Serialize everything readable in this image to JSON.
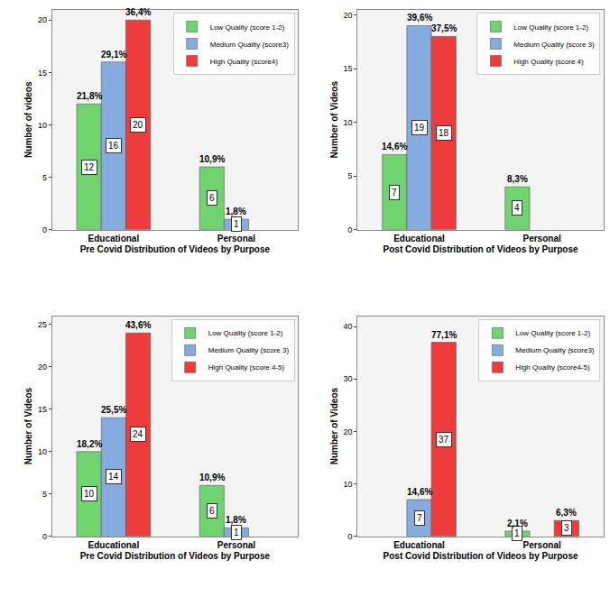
{
  "chart_data": [
    {
      "type": "bar",
      "x_label": "Pre Covid Distribution of Videos by Purpose",
      "y_label": "Number of videos",
      "categories": [
        "Educational",
        "Personal"
      ],
      "series": [
        {
          "name": "Low Quality (score 1-2)",
          "color": "#6fd46f",
          "values": [
            12,
            6
          ],
          "percent_labels": [
            "21,8%",
            "10,9%"
          ]
        },
        {
          "name": "Medium Quality (score3)",
          "color": "#86acdf",
          "values": [
            16,
            1
          ],
          "percent_labels": [
            "29,1%",
            "1,8%"
          ]
        },
        {
          "name": "High Quality (score4)",
          "color": "#ee3b3b",
          "values": [
            20,
            null
          ],
          "percent_labels": [
            "36,4%",
            null
          ]
        }
      ],
      "ylim": [
        0,
        21
      ],
      "yticks": [
        0,
        5,
        10,
        15,
        20
      ],
      "grid": false,
      "data_labels": true,
      "legend": "top right"
    },
    {
      "type": "bar",
      "x_label": "Post Covid Distribution of Videos by Purpose",
      "y_label": "Number of Videos",
      "categories": [
        "Educational",
        "Personal"
      ],
      "series": [
        {
          "name": "Low Quality (score 1-2)",
          "color": "#6fd46f",
          "values": [
            7,
            4
          ],
          "percent_labels": [
            "14,6%",
            "8,3%"
          ]
        },
        {
          "name": "Medium Quality (score 3)",
          "color": "#86acdf",
          "values": [
            19,
            null
          ],
          "percent_labels": [
            "39,6%",
            null
          ]
        },
        {
          "name": "High Quality (score 4)",
          "color": "#ee3b3b",
          "values": [
            18,
            null
          ],
          "percent_labels": [
            "37,5%",
            null
          ]
        }
      ],
      "ylim": [
        0,
        20.5
      ],
      "yticks": [
        0,
        5,
        10,
        15,
        20
      ],
      "grid": false,
      "data_labels": true,
      "legend": "top right"
    },
    {
      "type": "bar",
      "x_label": "Pre Covid Distribution of Videos by Purpose",
      "y_label": "Number of Videos",
      "categories": [
        "Educational",
        "Personal"
      ],
      "series": [
        {
          "name": "Low Quality (score 1-2)",
          "color": "#6fd46f",
          "values": [
            10,
            6
          ],
          "percent_labels": [
            "18,2%",
            "10,9%"
          ]
        },
        {
          "name": "Medium Quality (score 3)",
          "color": "#86acdf",
          "values": [
            14,
            1
          ],
          "percent_labels": [
            "25,5%",
            "1,8%"
          ]
        },
        {
          "name": "High Quality (score 4-5)",
          "color": "#ee3b3b",
          "values": [
            24,
            null
          ],
          "percent_labels": [
            "43,6%",
            null
          ]
        }
      ],
      "ylim": [
        0,
        26
      ],
      "yticks": [
        0,
        5,
        10,
        15,
        20,
        25
      ],
      "grid": false,
      "data_labels": true,
      "legend": "top right"
    },
    {
      "type": "bar",
      "x_label": "Post Covid Distribution of Videos by Purpose",
      "y_label": "Number of Videos",
      "categories": [
        "Educational",
        "Personal"
      ],
      "series": [
        {
          "name": "Low Quality (score 1-2)",
          "color": "#6fd46f",
          "values": [
            null,
            1
          ],
          "percent_labels": [
            null,
            "2,1%"
          ]
        },
        {
          "name": "Medium Quality (score3)",
          "color": "#86acdf",
          "values": [
            7,
            null
          ],
          "percent_labels": [
            "14,6%",
            null
          ]
        },
        {
          "name": "High Quality (score4-5)",
          "color": "#ee3b3b",
          "values": [
            37,
            3
          ],
          "percent_labels": [
            "77,1%",
            "6,3%"
          ]
        }
      ],
      "ylim": [
        0,
        42
      ],
      "yticks": [
        0,
        10,
        20,
        30,
        40
      ],
      "grid": false,
      "data_labels": true,
      "legend": "top right"
    }
  ]
}
